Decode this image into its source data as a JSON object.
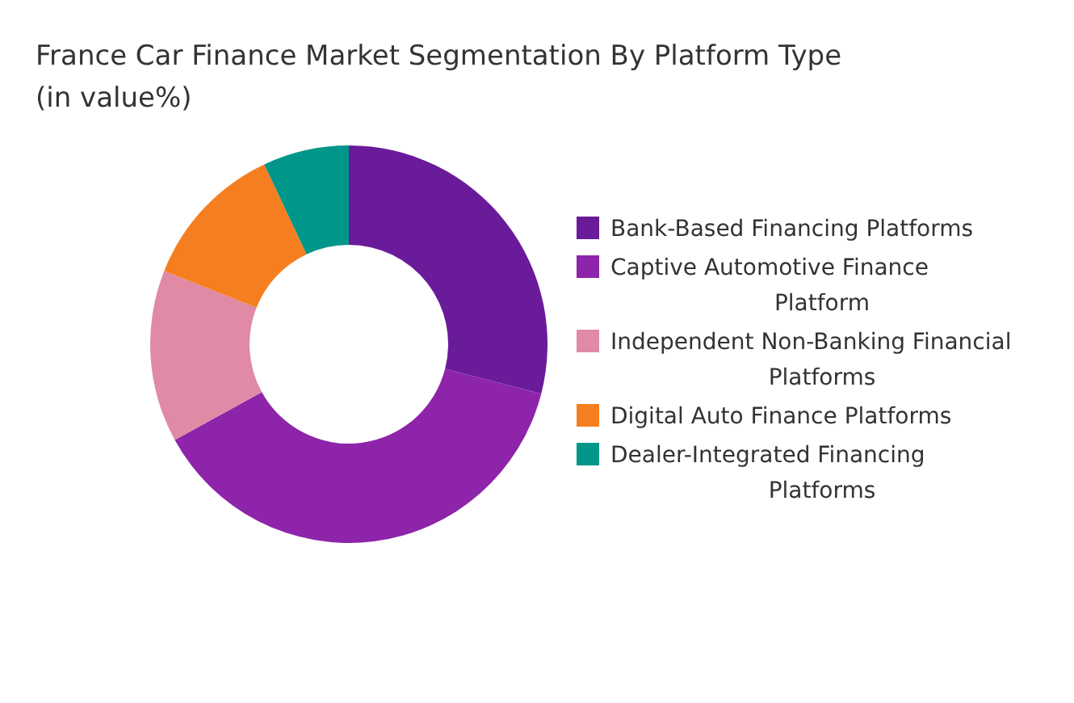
{
  "chart_data": {
    "type": "donut",
    "title": "France Car Finance Market Segmentation By Platform Type (in value%)",
    "categories": [
      "Bank-Based Financing Platforms",
      "Captive Automotive Finance Platform",
      "Independent Non-Banking Financial Platforms",
      "Digital Auto Finance Platforms",
      "Dealer-Integrated Financing Platforms"
    ],
    "values": [
      29,
      38,
      14,
      12,
      7
    ],
    "colors": [
      "#6a1b9a",
      "#8e24aa",
      "#e08aa6",
      "#f57f20",
      "#00968a"
    ],
    "legend": "right"
  }
}
